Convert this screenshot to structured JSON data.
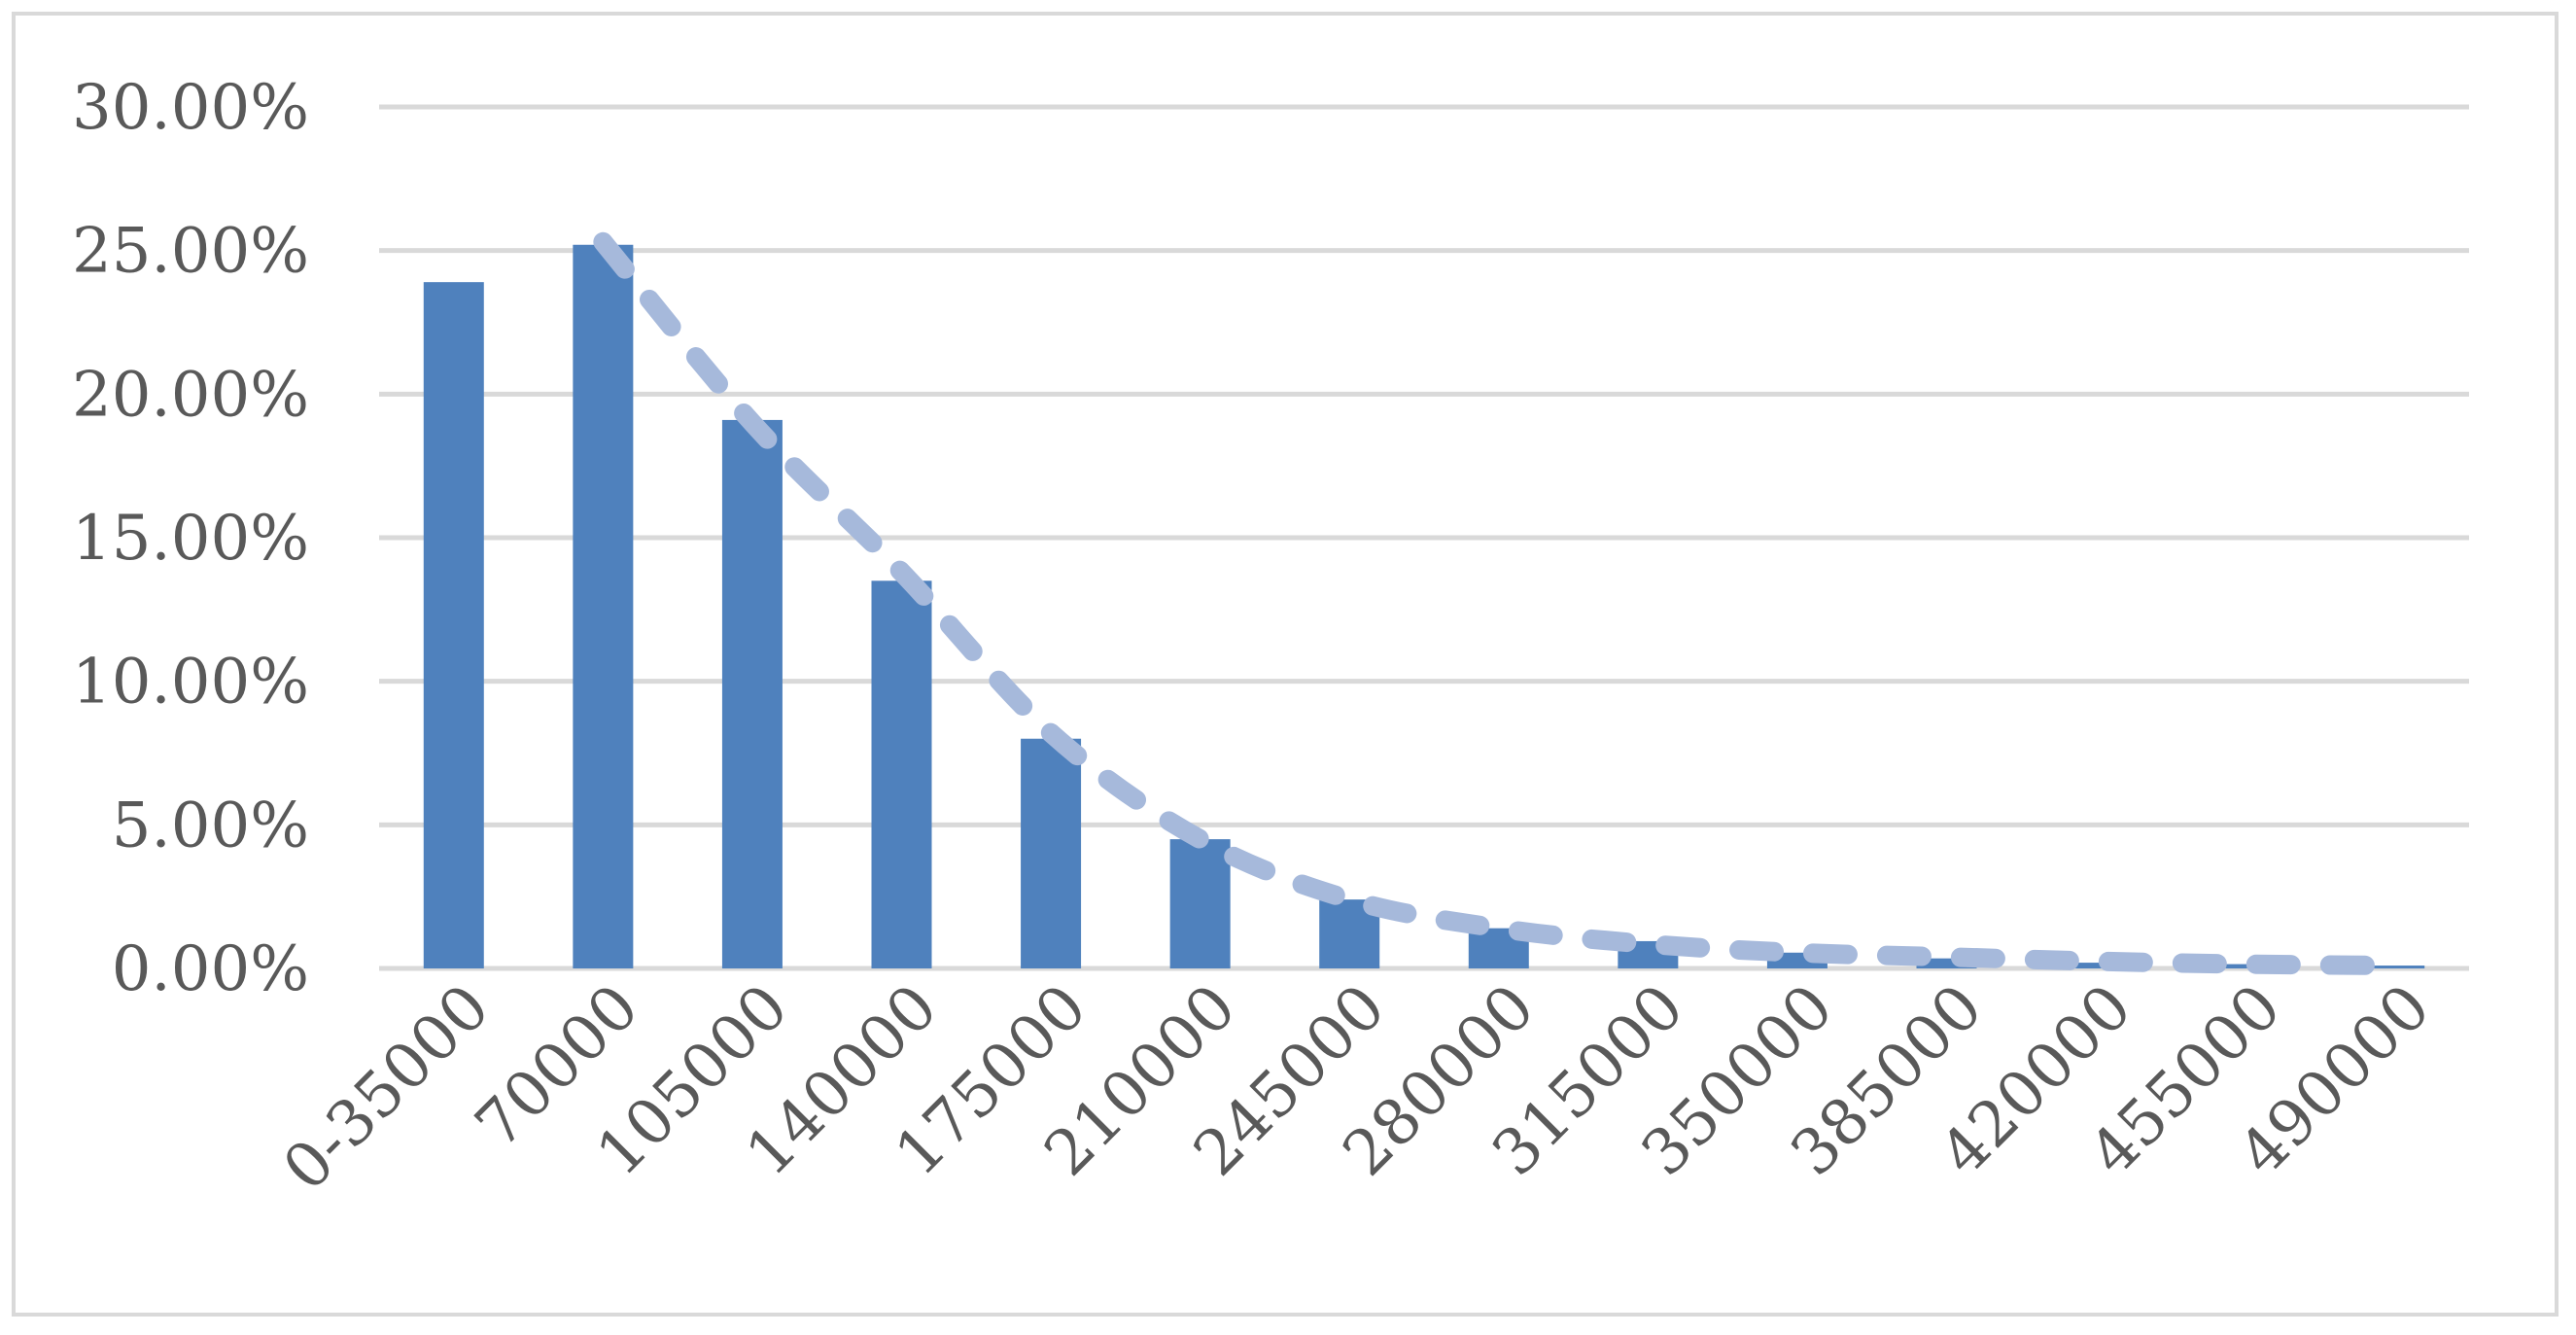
{
  "chart_data": {
    "type": "bar",
    "categories": [
      "0-35000",
      "70000",
      "105000",
      "140000",
      "175000",
      "210000",
      "245000",
      "280000",
      "315000",
      "350000",
      "385000",
      "420000",
      "455000",
      "490000"
    ],
    "series": [
      {
        "type": "bar",
        "values": [
          23.9,
          25.2,
          19.1,
          13.5,
          8.0,
          4.5,
          2.4,
          1.4,
          0.95,
          0.55,
          0.35,
          0.2,
          0.15,
          0.1
        ]
      },
      {
        "type": "line",
        "style": "dashed",
        "values": [
          null,
          25.3,
          19.0,
          13.8,
          8.2,
          4.5,
          2.4,
          1.4,
          0.85,
          0.55,
          0.4,
          0.25,
          0.15,
          0.1
        ]
      }
    ],
    "ylim": [
      0,
      30
    ],
    "yticks": [
      "0.00%",
      "5.00%",
      "10.00%",
      "15.00%",
      "20.00%",
      "25.00%",
      "30.00%"
    ],
    "grid": true,
    "legend": "none",
    "colors": {
      "bar": "#4f81bd",
      "trend": "#a6b9db",
      "grid": "#d9d9d9",
      "text": "#595959"
    }
  }
}
